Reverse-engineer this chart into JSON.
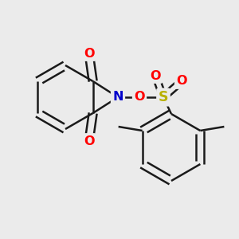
{
  "background_color": "#ebebeb",
  "bond_color": "#1a1a1a",
  "bond_width": 1.8,
  "figsize": [
    3.0,
    3.0
  ],
  "dpi": 100,
  "xlim": [
    0,
    300
  ],
  "ylim": [
    0,
    300
  ]
}
